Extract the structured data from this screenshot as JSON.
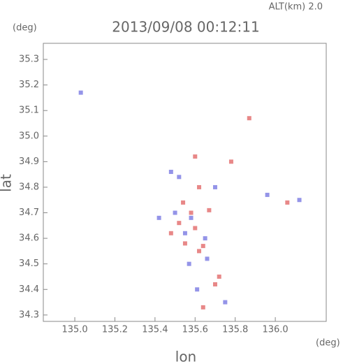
{
  "chart_data": {
    "type": "scatter",
    "title": "2013/09/08 00:12:11",
    "annotation": "ALT(km) 2.0",
    "y_unit": "(deg)",
    "x_unit": "(deg)",
    "xlabel": "lon",
    "ylabel": "lat",
    "xlim": [
      134.843,
      136.254
    ],
    "ylim": [
      34.275,
      35.363
    ],
    "xticks": [
      {
        "value": 135.0,
        "label": "135.0"
      },
      135.2,
      135.4,
      135.6,
      135.8,
      {
        "value": 136.0,
        "label": "136.0"
      }
    ],
    "yticks": [
      34.3,
      34.4,
      34.5,
      34.6,
      34.7,
      34.8,
      34.9,
      {
        "value": 35.0,
        "label": "35.0"
      },
      35.1,
      35.2,
      35.3
    ],
    "series": [
      {
        "color": "#e06060",
        "x": [
          135.87,
          135.62,
          135.52,
          135.6,
          135.55,
          135.62,
          135.72,
          135.7,
          135.64,
          135.78,
          136.06,
          135.48,
          135.67,
          135.6,
          135.58,
          135.54,
          135.64
        ],
        "y": [
          35.07,
          34.8,
          34.66,
          34.64,
          34.58,
          34.55,
          34.45,
          34.42,
          34.33,
          34.9,
          34.74,
          34.62,
          34.71,
          34.92,
          34.7,
          34.74,
          34.57
        ]
      },
      {
        "color": "#7070e0",
        "x": [
          135.03,
          135.52,
          136.12,
          135.96,
          135.58,
          135.5,
          135.65,
          135.57,
          135.7,
          135.42,
          135.75,
          135.66,
          135.61,
          135.55,
          135.48
        ],
        "y": [
          35.17,
          34.84,
          34.75,
          34.77,
          34.68,
          34.7,
          34.6,
          34.5,
          34.8,
          34.68,
          34.35,
          34.52,
          34.4,
          34.62,
          34.86
        ]
      }
    ]
  }
}
